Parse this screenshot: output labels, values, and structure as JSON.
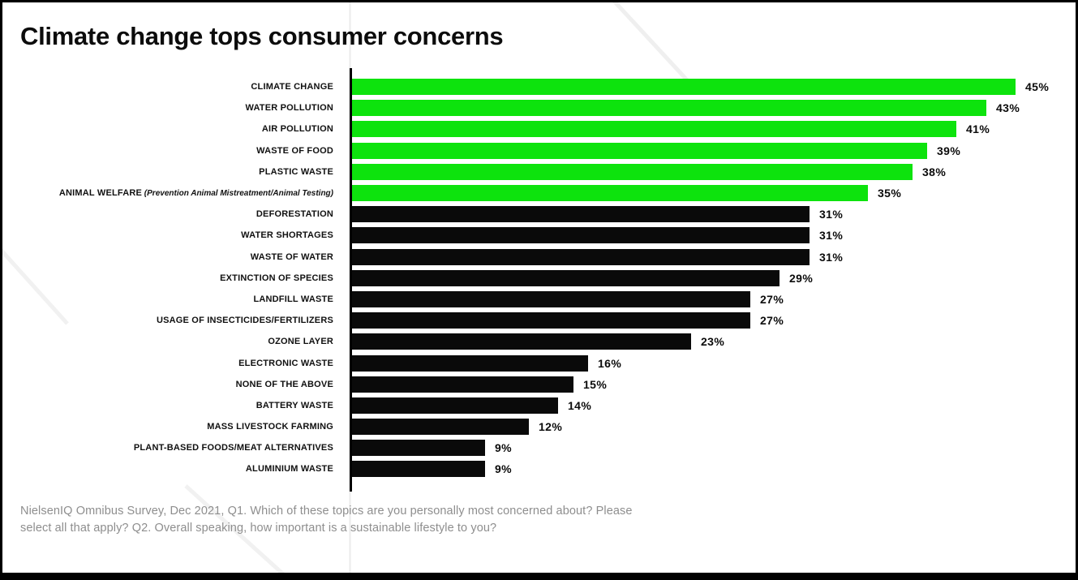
{
  "page": {
    "title": "Climate change tops consumer concerns"
  },
  "footer": {
    "line1": "NielsenIQ Omnibus Survey, Dec 2021, Q1. Which of these topics are you personally most concerned about? Please",
    "line2": "select all that apply? Q2. Overall speaking, how important is a sustainable lifestyle to you?"
  },
  "chart_data": {
    "type": "bar",
    "orientation": "horizontal",
    "title": "Climate change tops consumer concerns",
    "unit": "%",
    "xlim": [
      0,
      45
    ],
    "grid": false,
    "legend": false,
    "highlight_color": "#0de30d",
    "default_color": "#0a0a0a",
    "value_label_suffix": "%",
    "items": [
      {
        "label": "CLIMATE CHANGE",
        "sublabel": "",
        "value": 45,
        "color_group": "green"
      },
      {
        "label": "WATER POLLUTION",
        "sublabel": "",
        "value": 43,
        "color_group": "green"
      },
      {
        "label": "AIR POLLUTION",
        "sublabel": "",
        "value": 41,
        "color_group": "green"
      },
      {
        "label": "WASTE OF FOOD",
        "sublabel": "",
        "value": 39,
        "color_group": "green"
      },
      {
        "label": "PLASTIC WASTE",
        "sublabel": "",
        "value": 38,
        "color_group": "green"
      },
      {
        "label": "ANIMAL WELFARE",
        "sublabel": " (Prevention Animal Mistreatment/Animal Testing)",
        "value": 35,
        "color_group": "green"
      },
      {
        "label": "DEFORESTATION",
        "sublabel": "",
        "value": 31,
        "color_group": "black"
      },
      {
        "label": "WATER SHORTAGES",
        "sublabel": "",
        "value": 31,
        "color_group": "black"
      },
      {
        "label": "WASTE OF WATER",
        "sublabel": "",
        "value": 31,
        "color_group": "black"
      },
      {
        "label": "EXTINCTION OF SPECIES",
        "sublabel": "",
        "value": 29,
        "color_group": "black"
      },
      {
        "label": "LANDFILL WASTE",
        "sublabel": "",
        "value": 27,
        "color_group": "black"
      },
      {
        "label": "USAGE OF INSECTICIDES/FERTILIZERS",
        "sublabel": "",
        "value": 27,
        "color_group": "black"
      },
      {
        "label": "OZONE LAYER",
        "sublabel": "",
        "value": 23,
        "color_group": "black"
      },
      {
        "label": "ELECTRONIC WASTE",
        "sublabel": "",
        "value": 16,
        "color_group": "black"
      },
      {
        "label": "NONE OF THE ABOVE",
        "sublabel": "",
        "value": 15,
        "color_group": "black"
      },
      {
        "label": "BATTERY WASTE",
        "sublabel": "",
        "value": 14,
        "color_group": "black"
      },
      {
        "label": "MASS LIVESTOCK FARMING",
        "sublabel": "",
        "value": 12,
        "color_group": "black"
      },
      {
        "label": "PLANT-BASED FOODS/MEAT ALTERNATIVES",
        "sublabel": "",
        "value": 9,
        "color_group": "black"
      },
      {
        "label": "ALUMINIUM WASTE",
        "sublabel": "",
        "value": 9,
        "color_group": "black"
      }
    ],
    "source_note": "NielsenIQ Omnibus Survey, Dec 2021, Q1. Which of these topics are you personally most concerned about? Please select all that apply? Q2. Overall speaking, how important is a sustainable lifestyle to you?"
  }
}
